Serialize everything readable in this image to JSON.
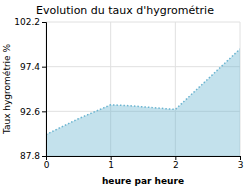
{
  "chart_data": {
    "type": "area",
    "title": "Evolution du taux d'hygrométrie",
    "xlabel": "heure par heure",
    "ylabel": "Taux hygrométrie %",
    "x": [
      0,
      0.5,
      1.0,
      1.3,
      2.0,
      3.0
    ],
    "values": [
      90.1,
      91.8,
      93.3,
      93.2,
      92.8,
      99.3
    ],
    "color": "#6ab4d0",
    "line_style": "dotted",
    "xlim": [
      0,
      3
    ],
    "ylim": [
      87.8,
      102.2
    ],
    "xticks": [
      0,
      1,
      2,
      3
    ],
    "yticks": [
      87.8,
      92.6,
      97.4,
      102.2
    ],
    "grid": true
  }
}
